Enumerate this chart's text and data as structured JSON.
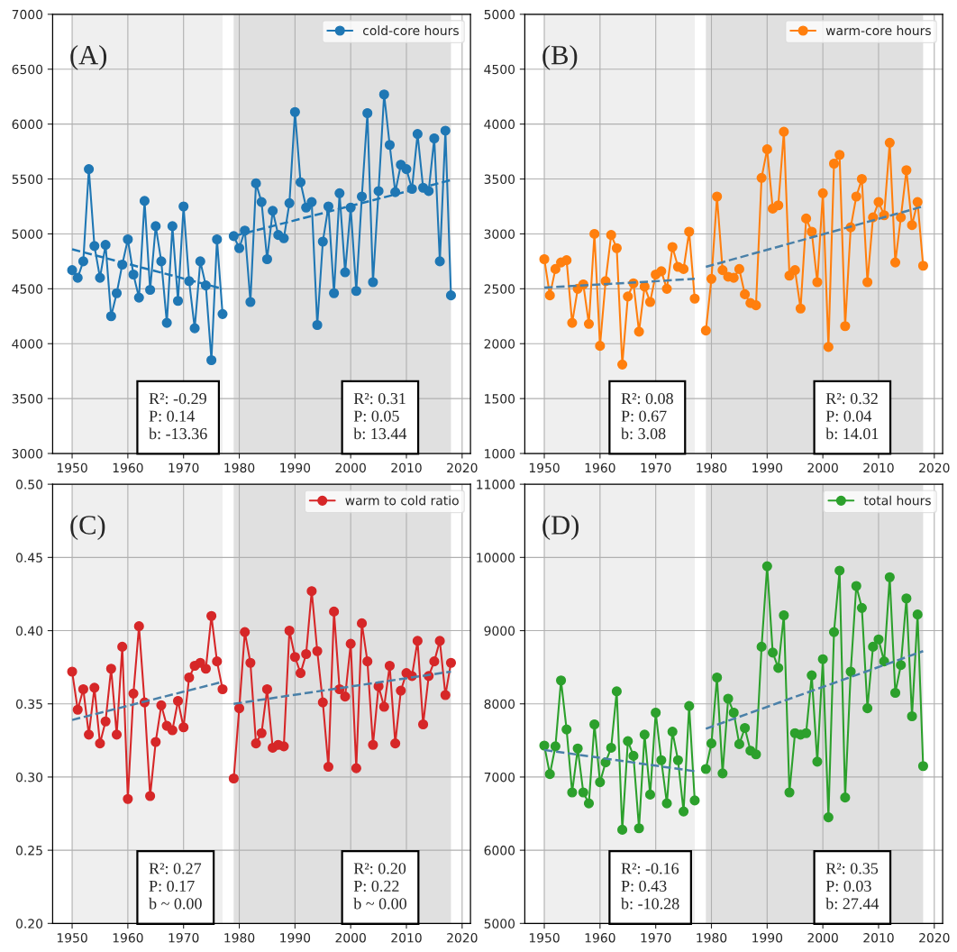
{
  "chart_data": [
    {
      "type": "line",
      "xlim": [
        1946.5,
        2021.5
      ],
      "xticks": [
        1950,
        1960,
        1970,
        1980,
        1990,
        2000,
        2010,
        2020
      ],
      "ylim": [
        3000,
        7000
      ],
      "yticks": [
        3000,
        3500,
        4000,
        4500,
        5000,
        5500,
        6000,
        6500,
        7000
      ],
      "grid": true,
      "legend": "top right",
      "marker": "circle",
      "bands": [
        {
          "axis": "x",
          "from": 1950,
          "to": 1977,
          "color": "#efefef"
        },
        {
          "axis": "x",
          "from": 1979,
          "to": 2018,
          "color": "#e0e0e0"
        }
      ],
      "annotations": [
        "(A)",
        "R²: -0.29\nP: 0.14\nb: -13.36",
        "R²: 0.31\nP: 0.05\nb: 13.44"
      ],
      "series": [
        {
          "name": "cold-core hours",
          "color": "#1f77b4",
          "x": [
            1950,
            1951,
            1952,
            1953,
            1954,
            1955,
            1956,
            1957,
            1958,
            1959,
            1960,
            1961,
            1962,
            1963,
            1964,
            1965,
            1966,
            1967,
            1968,
            1969,
            1970,
            1971,
            1972,
            1973,
            1974,
            1975,
            1976,
            1977,
            1978,
            1979,
            1980,
            1981,
            1982,
            1983,
            1984,
            1985,
            1986,
            1987,
            1988,
            1989,
            1990,
            1991,
            1992,
            1993,
            1994,
            1995,
            1996,
            1997,
            1998,
            1999,
            2000,
            2001,
            2002,
            2003,
            2004,
            2005,
            2006,
            2007,
            2008,
            2009,
            2010,
            2011,
            2012,
            2013,
            2014,
            2015,
            2016,
            2017,
            2018
          ],
          "values": [
            4670,
            4600,
            4750,
            5590,
            4890,
            4600,
            4900,
            4250,
            4460,
            4720,
            4950,
            4630,
            4420,
            5300,
            4490,
            5070,
            4750,
            4190,
            5070,
            4390,
            5250,
            4570,
            4140,
            4750,
            4530,
            3850,
            4950,
            4270,
            null,
            4980,
            4870,
            5030,
            4380,
            5460,
            5290,
            4770,
            5210,
            4990,
            4960,
            5280,
            6110,
            5470,
            5240,
            5290,
            4170,
            4930,
            5250,
            4460,
            5370,
            4650,
            5240,
            4480,
            5340,
            6100,
            4560,
            5390,
            6270,
            5810,
            5380,
            5630,
            5590,
            5410,
            5910,
            5420,
            5390,
            5870,
            4750,
            5940,
            4440
          ]
        },
        {
          "type": "line",
          "color": "#1f77b4",
          "line_style": "dashed",
          "marker": "none",
          "x": [
            1950,
            1977
          ],
          "values": [
            4860,
            4500
          ]
        },
        {
          "type": "line",
          "color": "#1f77b4",
          "line_style": "dashed",
          "marker": "none",
          "x": [
            1979,
            2018
          ],
          "values": [
            4980,
            5490
          ]
        }
      ]
    },
    {
      "type": "line",
      "xlim": [
        1946.5,
        2021.5
      ],
      "xticks": [
        1950,
        1960,
        1970,
        1980,
        1990,
        2000,
        2010,
        2020
      ],
      "ylim": [
        1000,
        5000
      ],
      "yticks": [
        1000,
        1500,
        2000,
        2500,
        3000,
        3500,
        4000,
        4500,
        5000
      ],
      "grid": true,
      "legend": "top right",
      "marker": "circle",
      "bands": [
        {
          "axis": "x",
          "from": 1950,
          "to": 1977,
          "color": "#efefef"
        },
        {
          "axis": "x",
          "from": 1979,
          "to": 2018,
          "color": "#e0e0e0"
        }
      ],
      "annotations": [
        "(B)",
        "R²: 0.08\nP: 0.67\nb: 3.08",
        "R²: 0.32\nP: 0.04\nb: 14.01"
      ],
      "series": [
        {
          "name": "warm-core hours",
          "color": "#ff7f0e",
          "x": [
            1950,
            1951,
            1952,
            1953,
            1954,
            1955,
            1956,
            1957,
            1958,
            1959,
            1960,
            1961,
            1962,
            1963,
            1964,
            1965,
            1966,
            1967,
            1968,
            1969,
            1970,
            1971,
            1972,
            1973,
            1974,
            1975,
            1976,
            1977,
            1978,
            1979,
            1980,
            1981,
            1982,
            1983,
            1984,
            1985,
            1986,
            1987,
            1988,
            1989,
            1990,
            1991,
            1992,
            1993,
            1994,
            1995,
            1996,
            1997,
            1998,
            1999,
            2000,
            2001,
            2002,
            2003,
            2004,
            2005,
            2006,
            2007,
            2008,
            2009,
            2010,
            2011,
            2012,
            2013,
            2014,
            2015,
            2016,
            2017,
            2018
          ],
          "values": [
            2770,
            2440,
            2680,
            2740,
            2760,
            2190,
            2500,
            2540,
            2180,
            3000,
            1980,
            2570,
            2990,
            2870,
            1810,
            2430,
            2550,
            2110,
            2520,
            2380,
            2630,
            2660,
            2500,
            2880,
            2700,
            2680,
            3020,
            2410,
            null,
            2120,
            2590,
            3340,
            2670,
            2610,
            2600,
            2680,
            2450,
            2370,
            2350,
            3510,
            3770,
            3230,
            3260,
            3930,
            2620,
            2670,
            2320,
            3140,
            3020,
            2560,
            3370,
            1970,
            3640,
            3720,
            2160,
            3060,
            3340,
            3500,
            2560,
            3150,
            3290,
            3170,
            3830,
            2740,
            3150,
            3580,
            3080,
            3290,
            2710
          ]
        },
        {
          "type": "line",
          "color": "#4a80a8",
          "line_style": "dashed",
          "marker": "none",
          "x": [
            1950,
            1977
          ],
          "values": [
            2510,
            2590
          ]
        },
        {
          "type": "line",
          "color": "#4a80a8",
          "line_style": "dashed",
          "marker": "none",
          "x": [
            1979,
            2018
          ],
          "values": [
            2700,
            3250
          ]
        }
      ]
    },
    {
      "type": "line",
      "xlim": [
        1946.5,
        2021.5
      ],
      "xticks": [
        1950,
        1960,
        1970,
        1980,
        1990,
        2000,
        2010,
        2020
      ],
      "ylim": [
        0.2,
        0.5
      ],
      "yticks": [
        {
          "value": 0.2,
          "label": "0.20"
        },
        {
          "value": 0.25,
          "label": "0.25"
        },
        {
          "value": 0.3,
          "label": "0.30"
        },
        {
          "value": 0.35,
          "label": "0.35"
        },
        {
          "value": 0.4,
          "label": "0.40"
        },
        {
          "value": 0.45,
          "label": "0.45"
        },
        {
          "value": 0.5,
          "label": "0.50"
        }
      ],
      "grid": true,
      "legend": "top right",
      "marker": "circle",
      "bands": [
        {
          "axis": "x",
          "from": 1950,
          "to": 1977,
          "color": "#efefef"
        },
        {
          "axis": "x",
          "from": 1979,
          "to": 2018,
          "color": "#e0e0e0"
        }
      ],
      "annotations": [
        "(C)",
        "R²: 0.27\nP: 0.17\nb ~ 0.00",
        "R²: 0.20\nP: 0.22\nb ~ 0.00"
      ],
      "series": [
        {
          "name": "warm to cold ratio",
          "color": "#d62728",
          "x": [
            1950,
            1951,
            1952,
            1953,
            1954,
            1955,
            1956,
            1957,
            1958,
            1959,
            1960,
            1961,
            1962,
            1963,
            1964,
            1965,
            1966,
            1967,
            1968,
            1969,
            1970,
            1971,
            1972,
            1973,
            1974,
            1975,
            1976,
            1977,
            1978,
            1979,
            1980,
            1981,
            1982,
            1983,
            1984,
            1985,
            1986,
            1987,
            1988,
            1989,
            1990,
            1991,
            1992,
            1993,
            1994,
            1995,
            1996,
            1997,
            1998,
            1999,
            2000,
            2001,
            2002,
            2003,
            2004,
            2005,
            2006,
            2007,
            2008,
            2009,
            2010,
            2011,
            2012,
            2013,
            2014,
            2015,
            2016,
            2017,
            2018
          ],
          "values": [
            0.372,
            0.346,
            0.36,
            0.329,
            0.361,
            0.323,
            0.338,
            0.374,
            0.329,
            0.389,
            0.285,
            0.357,
            0.403,
            0.351,
            0.287,
            0.324,
            0.349,
            0.335,
            0.332,
            0.352,
            0.334,
            0.368,
            0.376,
            0.378,
            0.374,
            0.41,
            0.379,
            0.36,
            null,
            0.299,
            0.347,
            0.399,
            0.378,
            0.323,
            0.33,
            0.36,
            0.32,
            0.322,
            0.321,
            0.4,
            0.382,
            0.371,
            0.384,
            0.427,
            0.386,
            0.351,
            0.307,
            0.413,
            0.36,
            0.355,
            0.391,
            0.306,
            0.405,
            0.379,
            0.322,
            0.362,
            0.348,
            0.376,
            0.323,
            0.359,
            0.371,
            0.369,
            0.393,
            0.336,
            0.369,
            0.379,
            0.393,
            0.356,
            0.378
          ]
        },
        {
          "type": "line",
          "color": "#4a80a8",
          "line_style": "dashed",
          "marker": "none",
          "x": [
            1950,
            1977
          ],
          "values": [
            0.339,
            0.365
          ]
        },
        {
          "type": "line",
          "color": "#4a80a8",
          "line_style": "dashed",
          "marker": "none",
          "x": [
            1979,
            2018
          ],
          "values": [
            0.35,
            0.372
          ]
        }
      ]
    },
    {
      "type": "line",
      "xlim": [
        1946.5,
        2021.5
      ],
      "xticks": [
        1950,
        1960,
        1970,
        1980,
        1990,
        2000,
        2010,
        2020
      ],
      "ylim": [
        5000,
        11000
      ],
      "yticks": [
        5000,
        6000,
        7000,
        8000,
        9000,
        10000,
        11000
      ],
      "grid": true,
      "legend": "top right",
      "marker": "circle",
      "bands": [
        {
          "axis": "x",
          "from": 1950,
          "to": 1977,
          "color": "#efefef"
        },
        {
          "axis": "x",
          "from": 1979,
          "to": 2018,
          "color": "#e0e0e0"
        }
      ],
      "annotations": [
        "(D)",
        "R²: -0.16\nP: 0.43\nb: -10.28",
        "R²: 0.35\nP: 0.03\nb: 27.44"
      ],
      "series": [
        {
          "name": "total hours",
          "color": "#2ca02c",
          "x": [
            1950,
            1951,
            1952,
            1953,
            1954,
            1955,
            1956,
            1957,
            1958,
            1959,
            1960,
            1961,
            1962,
            1963,
            1964,
            1965,
            1966,
            1967,
            1968,
            1969,
            1970,
            1971,
            1972,
            1973,
            1974,
            1975,
            1976,
            1977,
            1978,
            1979,
            1980,
            1981,
            1982,
            1983,
            1984,
            1985,
            1986,
            1987,
            1988,
            1989,
            1990,
            1991,
            1992,
            1993,
            1994,
            1995,
            1996,
            1997,
            1998,
            1999,
            2000,
            2001,
            2002,
            2003,
            2004,
            2005,
            2006,
            2007,
            2008,
            2009,
            2010,
            2011,
            2012,
            2013,
            2014,
            2015,
            2016,
            2017,
            2018
          ],
          "values": [
            7430,
            7040,
            7420,
            8320,
            7650,
            6790,
            7390,
            6790,
            6640,
            7720,
            6930,
            7200,
            7400,
            8170,
            6280,
            7490,
            7290,
            6300,
            7580,
            6760,
            7880,
            7230,
            6640,
            7620,
            7230,
            6530,
            7970,
            6680,
            null,
            7110,
            7460,
            8360,
            7050,
            8070,
            7880,
            7450,
            7670,
            7360,
            7310,
            8780,
            9880,
            8700,
            8490,
            9210,
            6790,
            7600,
            7580,
            7600,
            8390,
            7210,
            8610,
            6450,
            8980,
            9820,
            6720,
            8440,
            9610,
            9310,
            7940,
            8780,
            8880,
            8580,
            9730,
            8150,
            8530,
            9440,
            7830,
            9220,
            7150
          ]
        },
        {
          "type": "line",
          "color": "#4a80a8",
          "line_style": "dashed",
          "marker": "none",
          "x": [
            1950,
            1977
          ],
          "values": [
            7370,
            7080
          ]
        },
        {
          "type": "line",
          "color": "#4a80a8",
          "line_style": "dashed",
          "marker": "none",
          "x": [
            1979,
            2018
          ],
          "values": [
            7660,
            8720
          ]
        }
      ]
    }
  ]
}
